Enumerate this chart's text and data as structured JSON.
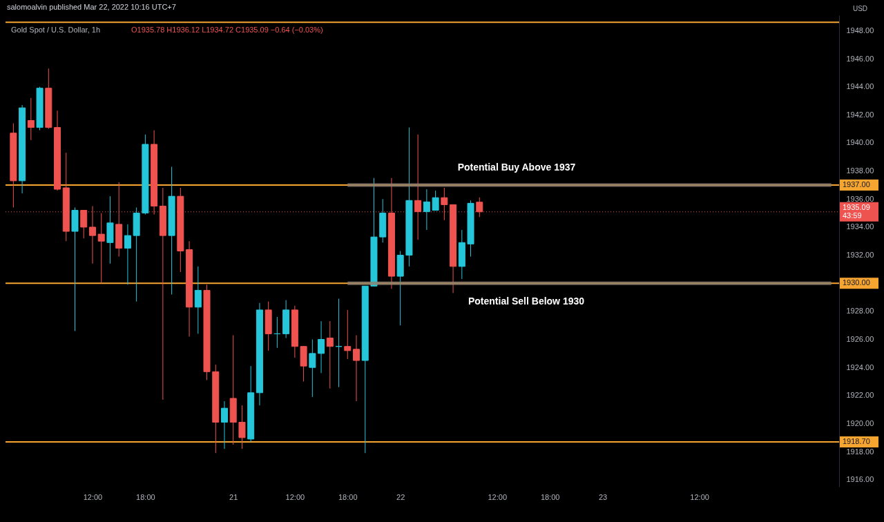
{
  "chart_data": {
    "type": "candlestick",
    "title": "Gold Spot / U.S. Dollar, 1h",
    "subtitle": "salomoalvin published Mar 22, 2022 10:16 UTC+7",
    "ylabel": "USD",
    "annotations": [
      "O1935.78 H1936.12 L1934.72 C1935.09 −0.64 (−0.03%)",
      "Potential Buy Above 1937",
      "Potential Sell Below 1930"
    ],
    "categories": [
      null,
      null,
      null,
      null,
      null,
      null,
      null,
      null,
      null,
      "12:00",
      null,
      null,
      null,
      null,
      null,
      "18:00",
      null,
      null,
      null,
      null,
      null,
      null,
      null,
      null,
      null,
      "21",
      null,
      null,
      null,
      null,
      null,
      null,
      "12:00",
      null,
      null,
      null,
      null,
      null,
      "18:00",
      null,
      null,
      null,
      null,
      null,
      "22",
      null,
      null,
      null,
      null,
      null,
      null,
      null,
      null,
      null,
      null,
      "12:00",
      null,
      null,
      null,
      null,
      null,
      "18:00",
      null,
      null,
      null,
      null,
      null,
      "23",
      null,
      null,
      null,
      null,
      null,
      null,
      null,
      null,
      null,
      null,
      "12:00",
      null,
      null,
      null,
      null,
      null,
      null,
      null,
      null,
      null,
      null,
      null,
      null,
      null,
      null,
      null
    ],
    "ohlc": [
      [
        1940.7,
        1941.4,
        1935.4,
        1937.3
      ],
      [
        1937.3,
        1942.7,
        1936.4,
        1942.5
      ],
      [
        1941.6,
        1943.2,
        1940.2,
        1941.1
      ],
      [
        1941.1,
        1944.0,
        1940.9,
        1943.9
      ],
      [
        1943.9,
        1945.3,
        1941.0,
        1941.1
      ],
      [
        1941.1,
        1942.3,
        1936.6,
        1936.7
      ],
      [
        1936.8,
        1939.3,
        1933.0,
        1933.7
      ],
      [
        1933.7,
        1935.4,
        1926.6,
        1935.2
      ],
      [
        1935.2,
        1935.2,
        1933.2,
        1934.0
      ],
      [
        1934.0,
        1935.5,
        1931.4,
        1933.4
      ],
      [
        1933.5,
        1935.0,
        1930.0,
        1933.0
      ],
      [
        1932.9,
        1936.2,
        1931.4,
        1934.3
      ],
      [
        1934.2,
        1937.2,
        1931.9,
        1932.5
      ],
      [
        1932.5,
        1934.2,
        1929.9,
        1933.4
      ],
      [
        1933.4,
        1935.4,
        1928.7,
        1935.0
      ],
      [
        1935.0,
        1940.6,
        1934.9,
        1939.9
      ],
      [
        1939.9,
        1940.9,
        1934.9,
        1935.5
      ],
      [
        1935.5,
        1936.8,
        1921.7,
        1933.4
      ],
      [
        1933.4,
        1938.3,
        1929.2,
        1936.2
      ],
      [
        1936.2,
        1936.8,
        1930.8,
        1932.3
      ],
      [
        1932.4,
        1933.0,
        1926.2,
        1928.3
      ],
      [
        1928.3,
        1931.2,
        1926.4,
        1929.5
      ],
      [
        1929.5,
        1929.9,
        1923.1,
        1923.7
      ],
      [
        1923.7,
        1924.2,
        1917.9,
        1920.1
      ],
      [
        1920.1,
        1921.6,
        1918.2,
        1921.1
      ],
      [
        1921.8,
        1926.3,
        1918.5,
        1920.1
      ],
      [
        1920.1,
        1921.3,
        1918.2,
        1919.0
      ],
      [
        1918.9,
        1924.1,
        1918.7,
        1922.2
      ],
      [
        1922.2,
        1928.6,
        1921.3,
        1928.1
      ],
      [
        1928.1,
        1928.7,
        1925.2,
        1926.4
      ],
      [
        1926.4,
        1927.6,
        1925.4,
        1926.4
      ],
      [
        1926.4,
        1928.8,
        1926.1,
        1928.1
      ],
      [
        1928.1,
        1928.4,
        1924.7,
        1925.5
      ],
      [
        1925.5,
        1925.5,
        1923.0,
        1924.1
      ],
      [
        1924.0,
        1926.0,
        1921.9,
        1925.0
      ],
      [
        1925.0,
        1927.3,
        1923.6,
        1926.0
      ],
      [
        1926.1,
        1927.3,
        1922.5,
        1925.5
      ],
      [
        1925.5,
        1928.9,
        1922.6,
        1925.5
      ],
      [
        1925.5,
        1928.1,
        1924.6,
        1925.2
      ],
      [
        1925.3,
        1926.3,
        1921.6,
        1924.5
      ],
      [
        1924.5,
        1929.8,
        1917.9,
        1929.8
      ],
      [
        1929.8,
        1937.5,
        1929.8,
        1933.3
      ],
      [
        1933.3,
        1936.0,
        1932.9,
        1935.0
      ],
      [
        1935.0,
        1937.5,
        1929.6,
        1930.5
      ],
      [
        1930.5,
        1932.3,
        1927.0,
        1932.0
      ],
      [
        1932.0,
        1941.1,
        1931.2,
        1935.9
      ],
      [
        1935.9,
        1940.6,
        1933.1,
        1935.1
      ],
      [
        1935.1,
        1936.7,
        1933.8,
        1935.8
      ],
      [
        1935.2,
        1936.6,
        1935.2,
        1936.1
      ],
      [
        1936.1,
        1936.8,
        1934.5,
        1935.6
      ],
      [
        1935.6,
        1935.6,
        1929.3,
        1931.2
      ],
      [
        1931.2,
        1933.8,
        1930.3,
        1932.9
      ],
      [
        1932.8,
        1935.9,
        1931.9,
        1935.7
      ],
      [
        1935.78,
        1936.12,
        1934.72,
        1935.09
      ],
      null,
      null,
      null,
      null,
      null,
      null,
      null,
      null,
      null,
      null,
      null,
      null,
      null,
      null,
      null,
      null,
      null,
      null,
      null,
      null,
      null,
      null,
      null,
      null,
      null,
      null,
      null,
      null,
      null,
      null,
      null,
      null,
      null,
      null,
      null,
      null,
      null,
      null,
      null,
      null
    ],
    "colors": [
      "#ef5350",
      "#26c6da",
      "#ef5350",
      "#26c6da",
      "#ef5350",
      "#ef5350",
      "#ef5350",
      "#26c6da",
      "#ef5350",
      "#ef5350",
      "#ef5350",
      "#26c6da",
      "#ef5350",
      "#26c6da",
      "#26c6da",
      "#26c6da",
      "#ef5350",
      "#ef5350",
      "#26c6da",
      "#ef5350",
      "#ef5350",
      "#26c6da",
      "#ef5350",
      "#ef5350",
      "#26c6da",
      "#ef5350",
      "#ef5350",
      "#26c6da",
      "#26c6da",
      "#ef5350",
      "#26c6da",
      "#26c6da",
      "#ef5350",
      "#ef5350",
      "#26c6da",
      "#26c6da",
      "#ef5350",
      "#26c6da",
      "#ef5350",
      "#ef5350",
      "#26c6da",
      "#26c6da",
      "#26c6da",
      "#ef5350",
      "#26c6da",
      "#26c6da",
      "#ef5350",
      "#26c6da",
      "#26c6da",
      "#ef5350",
      "#ef5350",
      "#26c6da",
      "#26c6da",
      "#ef5350",
      null,
      null,
      null,
      null,
      null,
      null,
      null,
      null,
      null,
      null,
      null,
      null,
      null,
      null,
      null,
      null,
      null,
      null,
      null,
      null,
      null,
      null,
      null,
      null,
      null,
      null,
      null,
      null,
      null,
      null,
      null,
      null,
      null,
      null,
      null,
      null,
      null,
      null,
      null,
      null
    ],
    "series": [
      {
        "type": "line",
        "color": "#8f8171",
        "values": [
          null,
          null,
          null,
          null,
          null,
          null,
          null,
          null,
          null,
          null,
          null,
          null,
          null,
          null,
          null,
          null,
          null,
          null,
          null,
          null,
          null,
          null,
          null,
          null,
          null,
          null,
          null,
          null,
          null,
          null,
          null,
          null,
          null,
          null,
          null,
          null,
          null,
          null,
          1937,
          1937,
          1937,
          1937,
          1937,
          1937,
          1937,
          1937,
          1937,
          1937,
          1937,
          1937,
          1937,
          1937,
          1937,
          1937,
          1937,
          1937,
          1937,
          1937,
          1937,
          1937,
          1937,
          1937,
          1937,
          1937,
          1937,
          1937,
          1937,
          1937,
          1937,
          1937,
          1937,
          1937,
          1937,
          1937,
          1937,
          1937,
          1937,
          1937,
          1937,
          1937,
          1937,
          1937,
          1937,
          1937,
          1937,
          1937,
          1937,
          1937,
          1937,
          1937,
          1937,
          1937,
          1937,
          1937
        ]
      },
      {
        "type": "line",
        "color": "#8f8171",
        "values": [
          null,
          null,
          null,
          null,
          null,
          null,
          null,
          null,
          null,
          null,
          null,
          null,
          null,
          null,
          null,
          null,
          null,
          null,
          null,
          null,
          null,
          null,
          null,
          null,
          null,
          null,
          null,
          null,
          null,
          null,
          null,
          null,
          null,
          null,
          null,
          null,
          null,
          null,
          1930,
          1930,
          1930,
          1930,
          1930,
          1930,
          1930,
          1930,
          1930,
          1930,
          1930,
          1930,
          1930,
          1930,
          1930,
          1930,
          1930,
          1930,
          1930,
          1930,
          1930,
          1930,
          1930,
          1930,
          1930,
          1930,
          1930,
          1930,
          1930,
          1930,
          1930,
          1930,
          1930,
          1930,
          1930,
          1930,
          1930,
          1930,
          1930,
          1930,
          1930,
          1930,
          1930,
          1930,
          1930,
          1930,
          1930,
          1930,
          1930,
          1930,
          1930,
          1930,
          1930,
          1930,
          1930,
          1930
        ]
      }
    ],
    "ref_lines": [
      {
        "axis": "y",
        "value": 1948.6,
        "color": "#f7a531"
      },
      {
        "axis": "y",
        "value": 1937,
        "label": "1937.00",
        "color": "#f7a531"
      },
      {
        "axis": "y",
        "value": 1930,
        "label": "1930.00",
        "color": "#f7a531"
      },
      {
        "axis": "y",
        "value": 1918.7,
        "label": "1918.70",
        "color": "#f7a531"
      },
      {
        "axis": "y",
        "value": 1935.09,
        "label": "1935.09\n43:59",
        "color": "#ef5350",
        "line_style": "dotted"
      }
    ],
    "ylim": [
      1915.5,
      1949.1
    ],
    "yticks": [
      {
        "value": 1916,
        "label": "1916.00"
      },
      {
        "value": 1918,
        "label": "1918.00"
      },
      {
        "value": 1920,
        "label": "1920.00"
      },
      {
        "value": 1922,
        "label": "1922.00"
      },
      {
        "value": 1924,
        "label": "1924.00"
      },
      {
        "value": 1926,
        "label": "1926.00"
      },
      {
        "value": 1928,
        "label": "1928.00"
      },
      {
        "value": 1932,
        "label": "1932.00"
      },
      {
        "value": 1934,
        "label": "1934.00"
      },
      {
        "value": 1936,
        "label": "1936.00"
      },
      {
        "value": 1938,
        "label": "1938.00"
      },
      {
        "value": 1940,
        "label": "1940.00"
      },
      {
        "value": 1942,
        "label": "1942.00"
      },
      {
        "value": 1944,
        "label": "1944.00"
      },
      {
        "value": 1946,
        "label": "1946.00"
      },
      {
        "value": 1948,
        "label": "1948.00"
      }
    ]
  }
}
